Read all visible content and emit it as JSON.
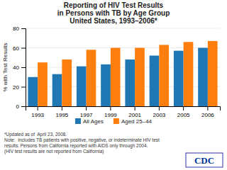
{
  "chart_data": {
    "type": "bar",
    "title": [
      "Reporting of HIV Test Results",
      "in Persons with TB by Age Group",
      "United States, 1993–2006*"
    ],
    "ylabel": "% with Test Results",
    "categories": [
      "1993",
      "1995",
      "1997",
      "1999",
      "2001",
      "2003",
      "2005",
      "2006"
    ],
    "series": [
      {
        "name": "All Ages",
        "values": [
          30,
          33,
          41,
          43,
          48,
          52,
          57,
          60
        ]
      },
      {
        "name": "Aged 25–44",
        "values": [
          45,
          48,
          58,
          60,
          60,
          63,
          66,
          67
        ]
      }
    ],
    "ylim": [
      0,
      80
    ],
    "yticks": [
      0,
      20,
      40,
      60,
      80
    ],
    "grid": true,
    "legend": "bottom",
    "annotations": [
      "*Updated as of  April 23, 2008.",
      "Note:  Includes TB patients with positive, negative, or indeterminate HIV test",
      "results. Persons from California reported with AIDS only through 2004.",
      "(HIV test results are not reported from California)",
      "CDC"
    ]
  }
}
